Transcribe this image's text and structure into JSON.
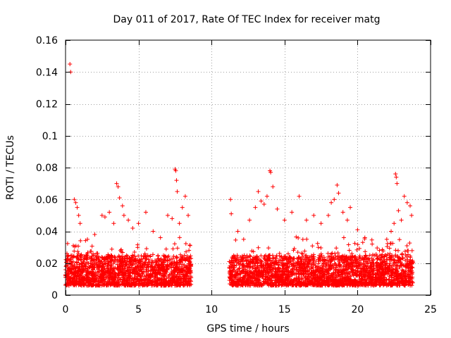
{
  "chart_data": {
    "type": "scatter",
    "title": "Day 011 of 2017, Rate Of TEC Index for receiver matg",
    "xlabel": "GPS time / hours",
    "ylabel": "ROTI / TECUs",
    "xlim": [
      0,
      25
    ],
    "ylim": [
      0,
      0.16
    ],
    "xticks": [
      0,
      5,
      10,
      15,
      20,
      25
    ],
    "yticks": [
      0,
      0.02,
      0.04,
      0.06,
      0.08,
      0.1,
      0.12,
      0.14,
      0.16
    ],
    "xtick_labels": [
      "0",
      "5",
      "10",
      "15",
      "20",
      "25"
    ],
    "ytick_labels": [
      "0",
      "0.02",
      "0.04",
      "0.06",
      "0.08",
      "0.1",
      "0.12",
      "0.14",
      "0.16"
    ],
    "grid": true,
    "marker": "+",
    "color": "#ff0000",
    "data_coverage_hours": [
      [
        0,
        8.6
      ],
      [
        11.2,
        23.8
      ]
    ],
    "baseline_range": [
      0.006,
      0.025
    ],
    "series": [
      {
        "name": "ROTI",
        "points": [
          [
            0.3,
            0.145
          ],
          [
            0.35,
            0.14
          ],
          [
            0.1,
            0.026
          ],
          [
            0.2,
            0.025
          ],
          [
            0.6,
            0.06
          ],
          [
            0.7,
            0.058
          ],
          [
            0.8,
            0.055
          ],
          [
            0.9,
            0.05
          ],
          [
            1.0,
            0.045
          ],
          [
            1.5,
            0.035
          ],
          [
            2.0,
            0.038
          ],
          [
            2.5,
            0.05
          ],
          [
            2.7,
            0.049
          ],
          [
            3.0,
            0.052
          ],
          [
            3.3,
            0.045
          ],
          [
            3.5,
            0.07
          ],
          [
            3.6,
            0.068
          ],
          [
            3.7,
            0.061
          ],
          [
            3.9,
            0.056
          ],
          [
            4.0,
            0.05
          ],
          [
            4.3,
            0.047
          ],
          [
            4.6,
            0.042
          ],
          [
            5.0,
            0.045
          ],
          [
            5.5,
            0.052
          ],
          [
            6.0,
            0.04
          ],
          [
            6.5,
            0.036
          ],
          [
            7.0,
            0.05
          ],
          [
            7.3,
            0.048
          ],
          [
            7.5,
            0.079
          ],
          [
            7.55,
            0.078
          ],
          [
            7.6,
            0.072
          ],
          [
            7.65,
            0.065
          ],
          [
            7.8,
            0.045
          ],
          [
            8.0,
            0.055
          ],
          [
            8.2,
            0.062
          ],
          [
            8.4,
            0.05
          ],
          [
            11.3,
            0.06
          ],
          [
            11.35,
            0.051
          ],
          [
            11.8,
            0.04
          ],
          [
            12.2,
            0.035
          ],
          [
            12.6,
            0.047
          ],
          [
            13.0,
            0.055
          ],
          [
            13.2,
            0.065
          ],
          [
            13.4,
            0.059
          ],
          [
            13.6,
            0.057
          ],
          [
            13.8,
            0.062
          ],
          [
            14.0,
            0.078
          ],
          [
            14.05,
            0.077
          ],
          [
            14.2,
            0.068
          ],
          [
            14.5,
            0.054
          ],
          [
            15.0,
            0.047
          ],
          [
            15.5,
            0.052
          ],
          [
            16.0,
            0.062
          ],
          [
            16.5,
            0.047
          ],
          [
            17.0,
            0.05
          ],
          [
            17.5,
            0.045
          ],
          [
            18.0,
            0.05
          ],
          [
            18.2,
            0.058
          ],
          [
            18.4,
            0.06
          ],
          [
            18.6,
            0.069
          ],
          [
            18.7,
            0.064
          ],
          [
            19.0,
            0.052
          ],
          [
            19.3,
            0.047
          ],
          [
            19.5,
            0.055
          ],
          [
            20.0,
            0.041
          ],
          [
            20.5,
            0.036
          ],
          [
            21.0,
            0.032
          ],
          [
            21.5,
            0.028
          ],
          [
            22.0,
            0.035
          ],
          [
            22.3,
            0.04
          ],
          [
            22.5,
            0.045
          ],
          [
            22.6,
            0.076
          ],
          [
            22.65,
            0.074
          ],
          [
            22.7,
            0.07
          ],
          [
            22.8,
            0.053
          ],
          [
            23.0,
            0.047
          ],
          [
            23.2,
            0.062
          ],
          [
            23.4,
            0.058
          ],
          [
            23.6,
            0.056
          ],
          [
            23.7,
            0.05
          ]
        ]
      }
    ]
  }
}
